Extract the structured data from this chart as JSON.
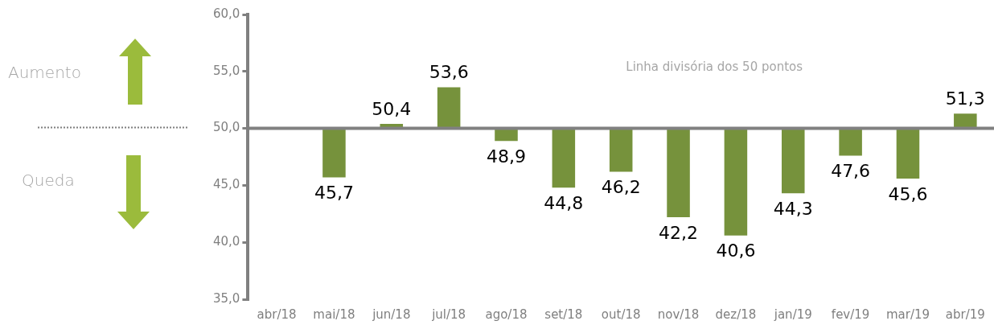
{
  "chart_data": {
    "type": "bar",
    "categories": [
      "abr/18",
      "mai/18",
      "jun/18",
      "jul/18",
      "ago/18",
      "set/18",
      "out/18",
      "nov/18",
      "dez/18",
      "jan/19",
      "fev/19",
      "mar/19",
      "abr/19"
    ],
    "base": [
      null,
      50,
      50,
      50,
      50,
      50,
      50,
      50,
      50,
      50,
      50,
      50,
      50
    ],
    "values": [
      null,
      -4.3,
      0.4,
      3.6,
      -1.1,
      -5.2,
      -3.8,
      -7.8,
      -9.4,
      -5.7,
      -2.4,
      -4.4,
      1.3
    ],
    "value_labels": [
      null,
      "45,7",
      "50,4",
      "53,6",
      "48,9",
      "44,8",
      "46,2",
      "42,2",
      "40,6",
      "44,3",
      "47,6",
      "45,6",
      "51,3"
    ],
    "color": "#76923c",
    "ylim": [
      35,
      60
    ],
    "yticks": [
      {
        "value": 35,
        "label": "35,0"
      },
      {
        "value": 40,
        "label": "40,0"
      },
      {
        "value": 45,
        "label": "45,0"
      },
      {
        "value": 50,
        "label": "50,0"
      },
      {
        "value": 55,
        "label": "55,0"
      },
      {
        "value": 60,
        "label": "60,0"
      }
    ],
    "grid": false,
    "legend": false,
    "ref_lines": [
      {
        "axis": "y",
        "value": 50,
        "label": "Linha divisória dos 50 pontos",
        "color": "#808080"
      }
    ],
    "annotations": [
      "Aumento",
      "Queda"
    ]
  }
}
